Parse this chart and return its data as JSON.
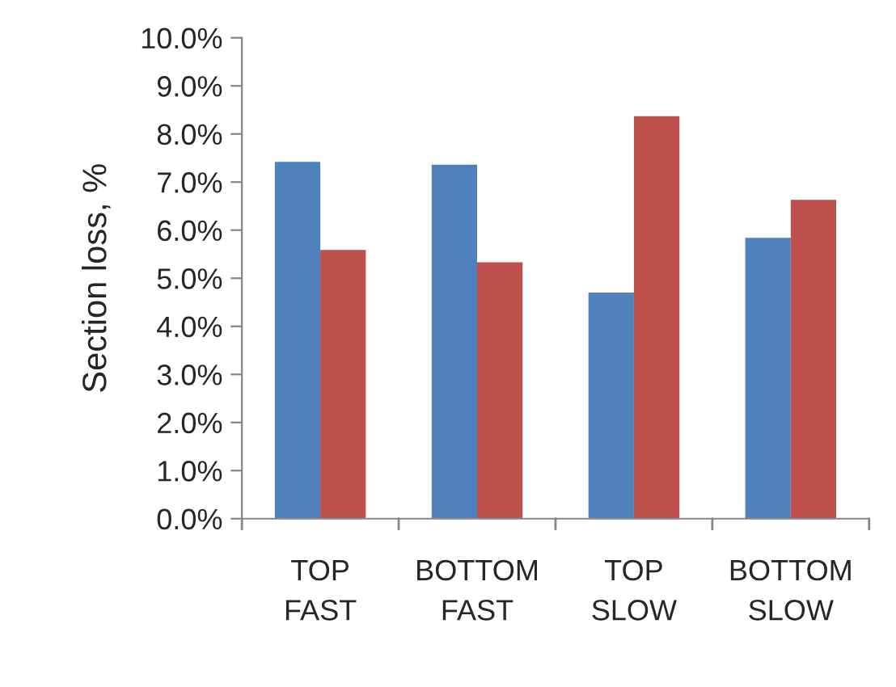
{
  "chart_data": {
    "type": "bar",
    "ylabel": "Section loss, %",
    "categories": [
      "TOP\nFAST",
      "BOTTOM\nFAST",
      "TOP\nSLOW",
      "BOTTOM\nSLOW"
    ],
    "series": [
      {
        "color": "#4f81bd",
        "values": [
          7.42,
          7.36,
          4.7,
          5.84
        ]
      },
      {
        "color": "#c0504d",
        "values": [
          5.59,
          5.33,
          8.37,
          6.63
        ]
      }
    ],
    "ylim": [
      0,
      10
    ],
    "yticks": [
      {
        "value": 0,
        "label": "0.0%"
      },
      {
        "value": 1,
        "label": "1.0%"
      },
      {
        "value": 2,
        "label": "2.0%"
      },
      {
        "value": 3,
        "label": "3.0%"
      },
      {
        "value": 4,
        "label": "4.0%"
      },
      {
        "value": 5,
        "label": "5.0%"
      },
      {
        "value": 6,
        "label": "6.0%"
      },
      {
        "value": 7,
        "label": "7.0%"
      },
      {
        "value": 8,
        "label": "8.0%"
      },
      {
        "value": 9,
        "label": "9.0%"
      },
      {
        "value": 10,
        "label": "10.0%"
      }
    ],
    "grid": false
  }
}
